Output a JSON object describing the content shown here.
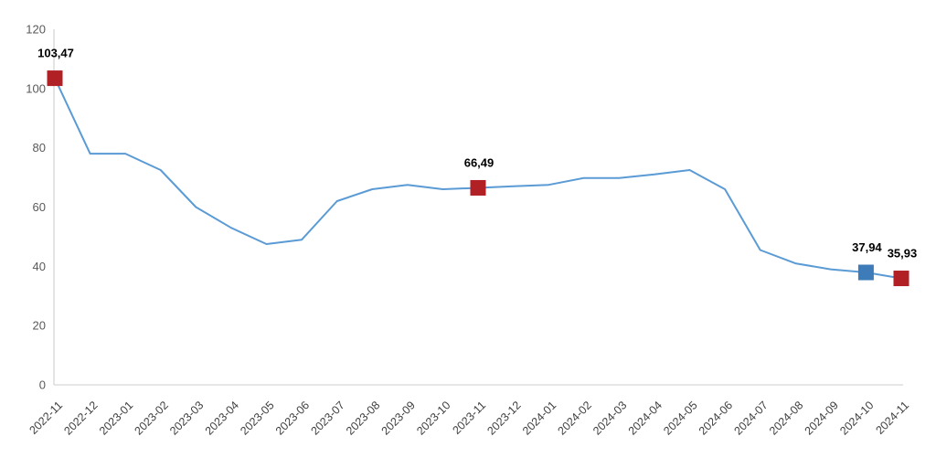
{
  "chart_data": {
    "type": "line",
    "title": "",
    "xlabel": "",
    "ylabel": "",
    "categories": [
      "2022-11",
      "2022-12",
      "2023-01",
      "2023-02",
      "2023-03",
      "2023-04",
      "2023-05",
      "2023-06",
      "2023-07",
      "2023-08",
      "2023-09",
      "2023-10",
      "2023-11",
      "2023-12",
      "2024-01",
      "2024-02",
      "2024-03",
      "2024-04",
      "2024-05",
      "2024-06",
      "2024-07",
      "2024-08",
      "2024-09",
      "2024-10",
      "2024-11"
    ],
    "values": [
      103.47,
      78,
      78,
      72.5,
      60,
      53,
      47.5,
      49,
      62,
      66,
      67.5,
      66,
      66.49,
      67,
      67.5,
      69.8,
      69.8,
      71,
      72.5,
      66,
      45.5,
      41,
      39,
      37.94,
      35.93
    ],
    "ylim": [
      0,
      120
    ],
    "yticks": [
      0,
      20,
      40,
      60,
      80,
      100,
      120
    ],
    "grid": false,
    "legend": false,
    "decimal_separator": ",",
    "labeled_points": [
      {
        "index": 0,
        "category": "2022-11",
        "value": 103.47,
        "label": "103,47",
        "marker_color": "#b02025"
      },
      {
        "index": 12,
        "category": "2023-11",
        "value": 66.49,
        "label": "66,49",
        "marker_color": "#b02025"
      },
      {
        "index": 23,
        "category": "2024-10",
        "value": 37.94,
        "label": "37,94",
        "marker_color": "#3e7cb9"
      },
      {
        "index": 24,
        "category": "2024-11",
        "value": 35.93,
        "label": "35,93",
        "marker_color": "#b02025"
      }
    ],
    "colors": {
      "line": "#5b9bd5",
      "axis": "#d6d6d6",
      "ytick_labels": "#595959",
      "xtick_labels": "#3f3f3f",
      "data_labels": "#000000",
      "background": "#ffffff"
    }
  }
}
